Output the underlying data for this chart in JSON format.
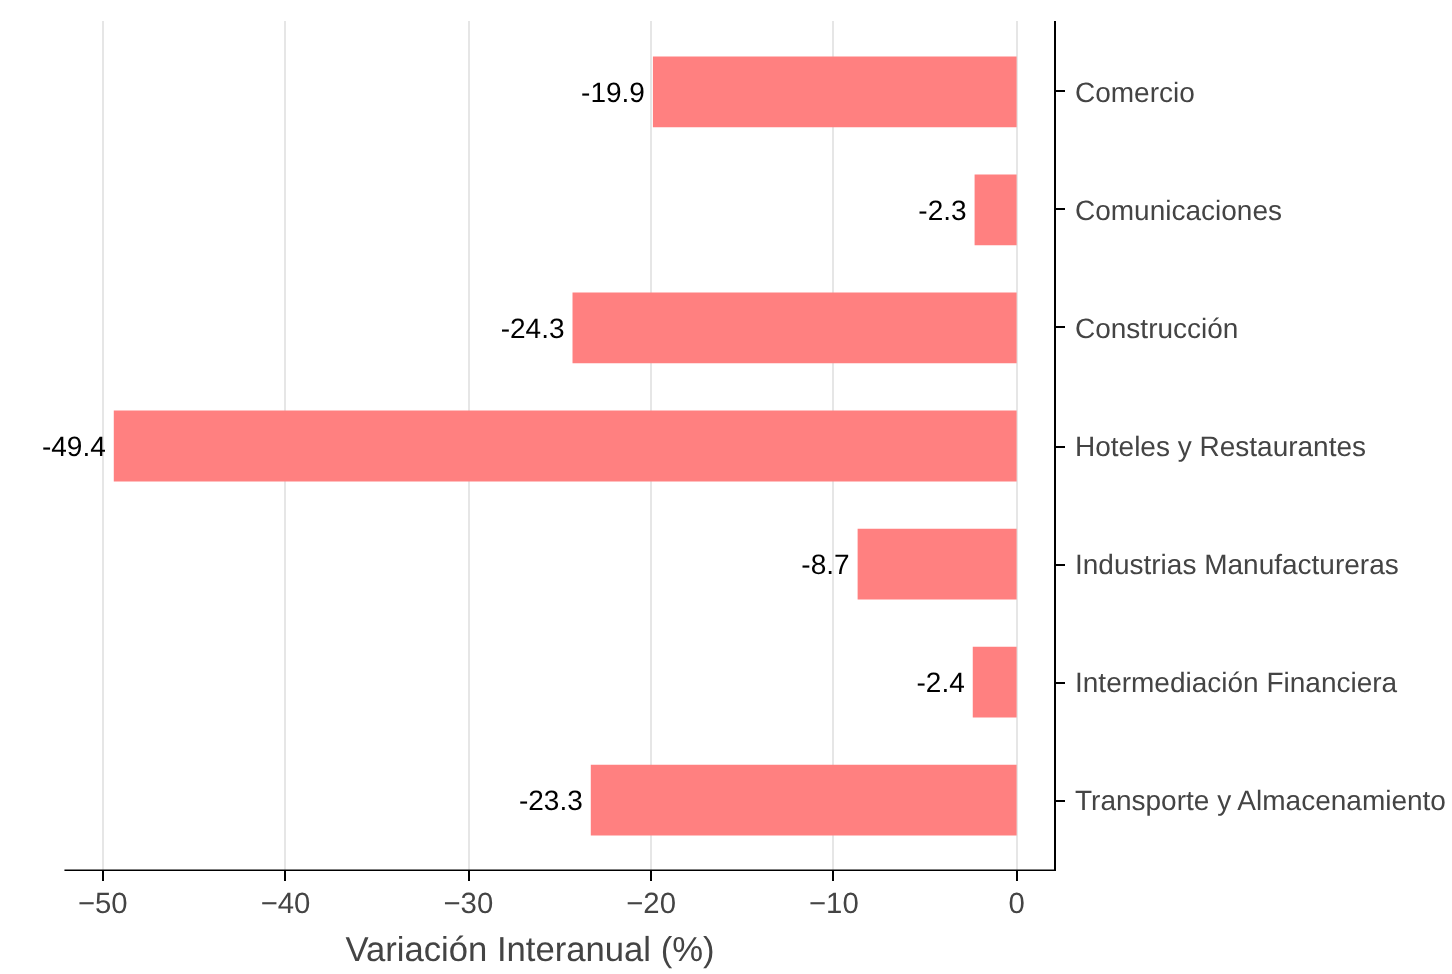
{
  "chart_data": {
    "type": "bar",
    "orientation": "horizontal",
    "xlabel": "Variación Interanual (%)",
    "categories": [
      "Comercio",
      "Comunicaciones",
      "Construcción",
      "Hoteles y Restaurantes",
      "Industrias Manufactureras",
      "Intermediación Financiera",
      "Transporte y Almacenamiento"
    ],
    "values": [
      -19.9,
      -2.3,
      -24.3,
      -49.4,
      -8.7,
      -2.4,
      -23.3
    ],
    "color": "#ff8080",
    "xlim": [
      -52.1,
      2.1
    ],
    "xticks": [
      -50,
      -40,
      -30,
      -20,
      -10,
      0
    ],
    "grid": "x",
    "data_labels": true
  }
}
